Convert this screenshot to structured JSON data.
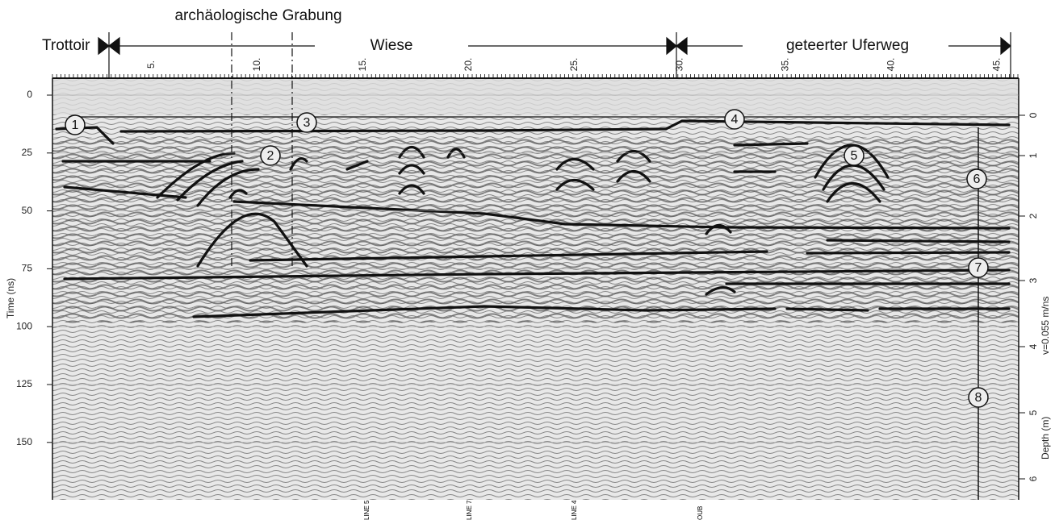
{
  "header": {
    "title": "archäologische Grabung",
    "zones": [
      "Trottoir",
      "Wiese",
      "geteerter Uferweg"
    ]
  },
  "top_axis": {
    "ticks": [
      "5.",
      "10.",
      "15.",
      "20.",
      "25.",
      "30.",
      "35.",
      "40.",
      "45."
    ]
  },
  "left_axis": {
    "label": "Time (ns)",
    "ticks": [
      "0",
      "25",
      "50",
      "75",
      "100",
      "125",
      "150"
    ]
  },
  "right_axis": {
    "label": "Depth (m)",
    "velocity": "v=0.055 m/ns",
    "ticks": [
      "0",
      "1",
      "2",
      "3",
      "4",
      "5",
      "6"
    ]
  },
  "markers": [
    "1",
    "2",
    "3",
    "4",
    "5",
    "6",
    "7",
    "8"
  ],
  "bottom_labels": [
    "LINE 5",
    "LINE 7",
    "LINE 4",
    "OUB"
  ]
}
